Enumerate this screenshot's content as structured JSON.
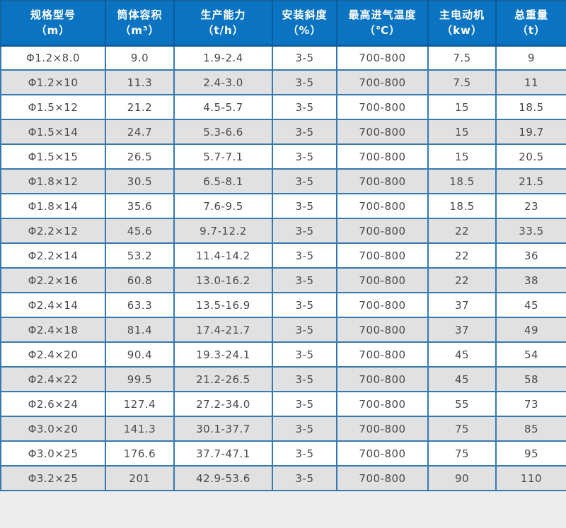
{
  "chart_data": {
    "type": "table",
    "title": "",
    "columns": [
      {
        "title": "规格型号",
        "unit": "（m）"
      },
      {
        "title": "筒体容积",
        "unit": "（m³）"
      },
      {
        "title": "生产能力",
        "unit": "（t/h）"
      },
      {
        "title": "安装斜度",
        "unit": "（%）"
      },
      {
        "title": "最高进气温度",
        "unit": "（℃）"
      },
      {
        "title": "主电动机",
        "unit": "（kw）"
      },
      {
        "title": "总重量",
        "unit": "（t）"
      }
    ],
    "rows": [
      [
        "Φ1.2×8.0",
        "9.0",
        "1.9-2.4",
        "3-5",
        "700-800",
        "7.5",
        "9"
      ],
      [
        "Φ1.2×10",
        "11.3",
        "2.4-3.0",
        "3-5",
        "700-800",
        "7.5",
        "11"
      ],
      [
        "Φ1.5×12",
        "21.2",
        "4.5-5.7",
        "3-5",
        "700-800",
        "15",
        "18.5"
      ],
      [
        "Φ1.5×14",
        "24.7",
        "5.3-6.6",
        "3-5",
        "700-800",
        "15",
        "19.7"
      ],
      [
        "Φ1.5×15",
        "26.5",
        "5.7-7.1",
        "3-5",
        "700-800",
        "15",
        "20.5"
      ],
      [
        "Φ1.8×12",
        "30.5",
        "6.5-8.1",
        "3-5",
        "700-800",
        "18.5",
        "21.5"
      ],
      [
        "Φ1.8×14",
        "35.6",
        "7.6-9.5",
        "3-5",
        "700-800",
        "18.5",
        "23"
      ],
      [
        "Φ2.2×12",
        "45.6",
        "9.7-12.2",
        "3-5",
        "700-800",
        "22",
        "33.5"
      ],
      [
        "Φ2.2×14",
        "53.2",
        "11.4-14.2",
        "3-5",
        "700-800",
        "22",
        "36"
      ],
      [
        "Φ2.2×16",
        "60.8",
        "13.0-16.2",
        "3-5",
        "700-800",
        "22",
        "38"
      ],
      [
        "Φ2.4×14",
        "63.3",
        "13.5-16.9",
        "3-5",
        "700-800",
        "37",
        "45"
      ],
      [
        "Φ2.4×18",
        "81.4",
        "17.4-21.7",
        "3-5",
        "700-800",
        "37",
        "49"
      ],
      [
        "Φ2.4×20",
        "90.4",
        "19.3-24.1",
        "3-5",
        "700-800",
        "45",
        "54"
      ],
      [
        "Φ2.4×22",
        "99.5",
        "21.2-26.5",
        "3-5",
        "700-800",
        "45",
        "58"
      ],
      [
        "Φ2.6×24",
        "127.4",
        "27.2-34.0",
        "3-5",
        "700-800",
        "55",
        "73"
      ],
      [
        "Φ3.0×20",
        "141.3",
        "30.1-37.7",
        "3-5",
        "700-800",
        "75",
        "85"
      ],
      [
        "Φ3.0×25",
        "176.6",
        "37.7-47.1",
        "3-5",
        "700-800",
        "75",
        "95"
      ],
      [
        "Φ3.2×25",
        "201",
        "42.9-53.6",
        "3-5",
        "700-800",
        "90",
        "110"
      ]
    ]
  },
  "colors": {
    "header_bg": "#0a74c2",
    "header_divider": "#0b5c9a",
    "grid_border": "#3579b1",
    "outer_border": "#15649f",
    "stripe_bg": "#e1e1e1",
    "row_bg": "#ffffff",
    "header_text": "#ffffff",
    "body_text": "#4a4a4a",
    "page_bg": "#ededed"
  }
}
